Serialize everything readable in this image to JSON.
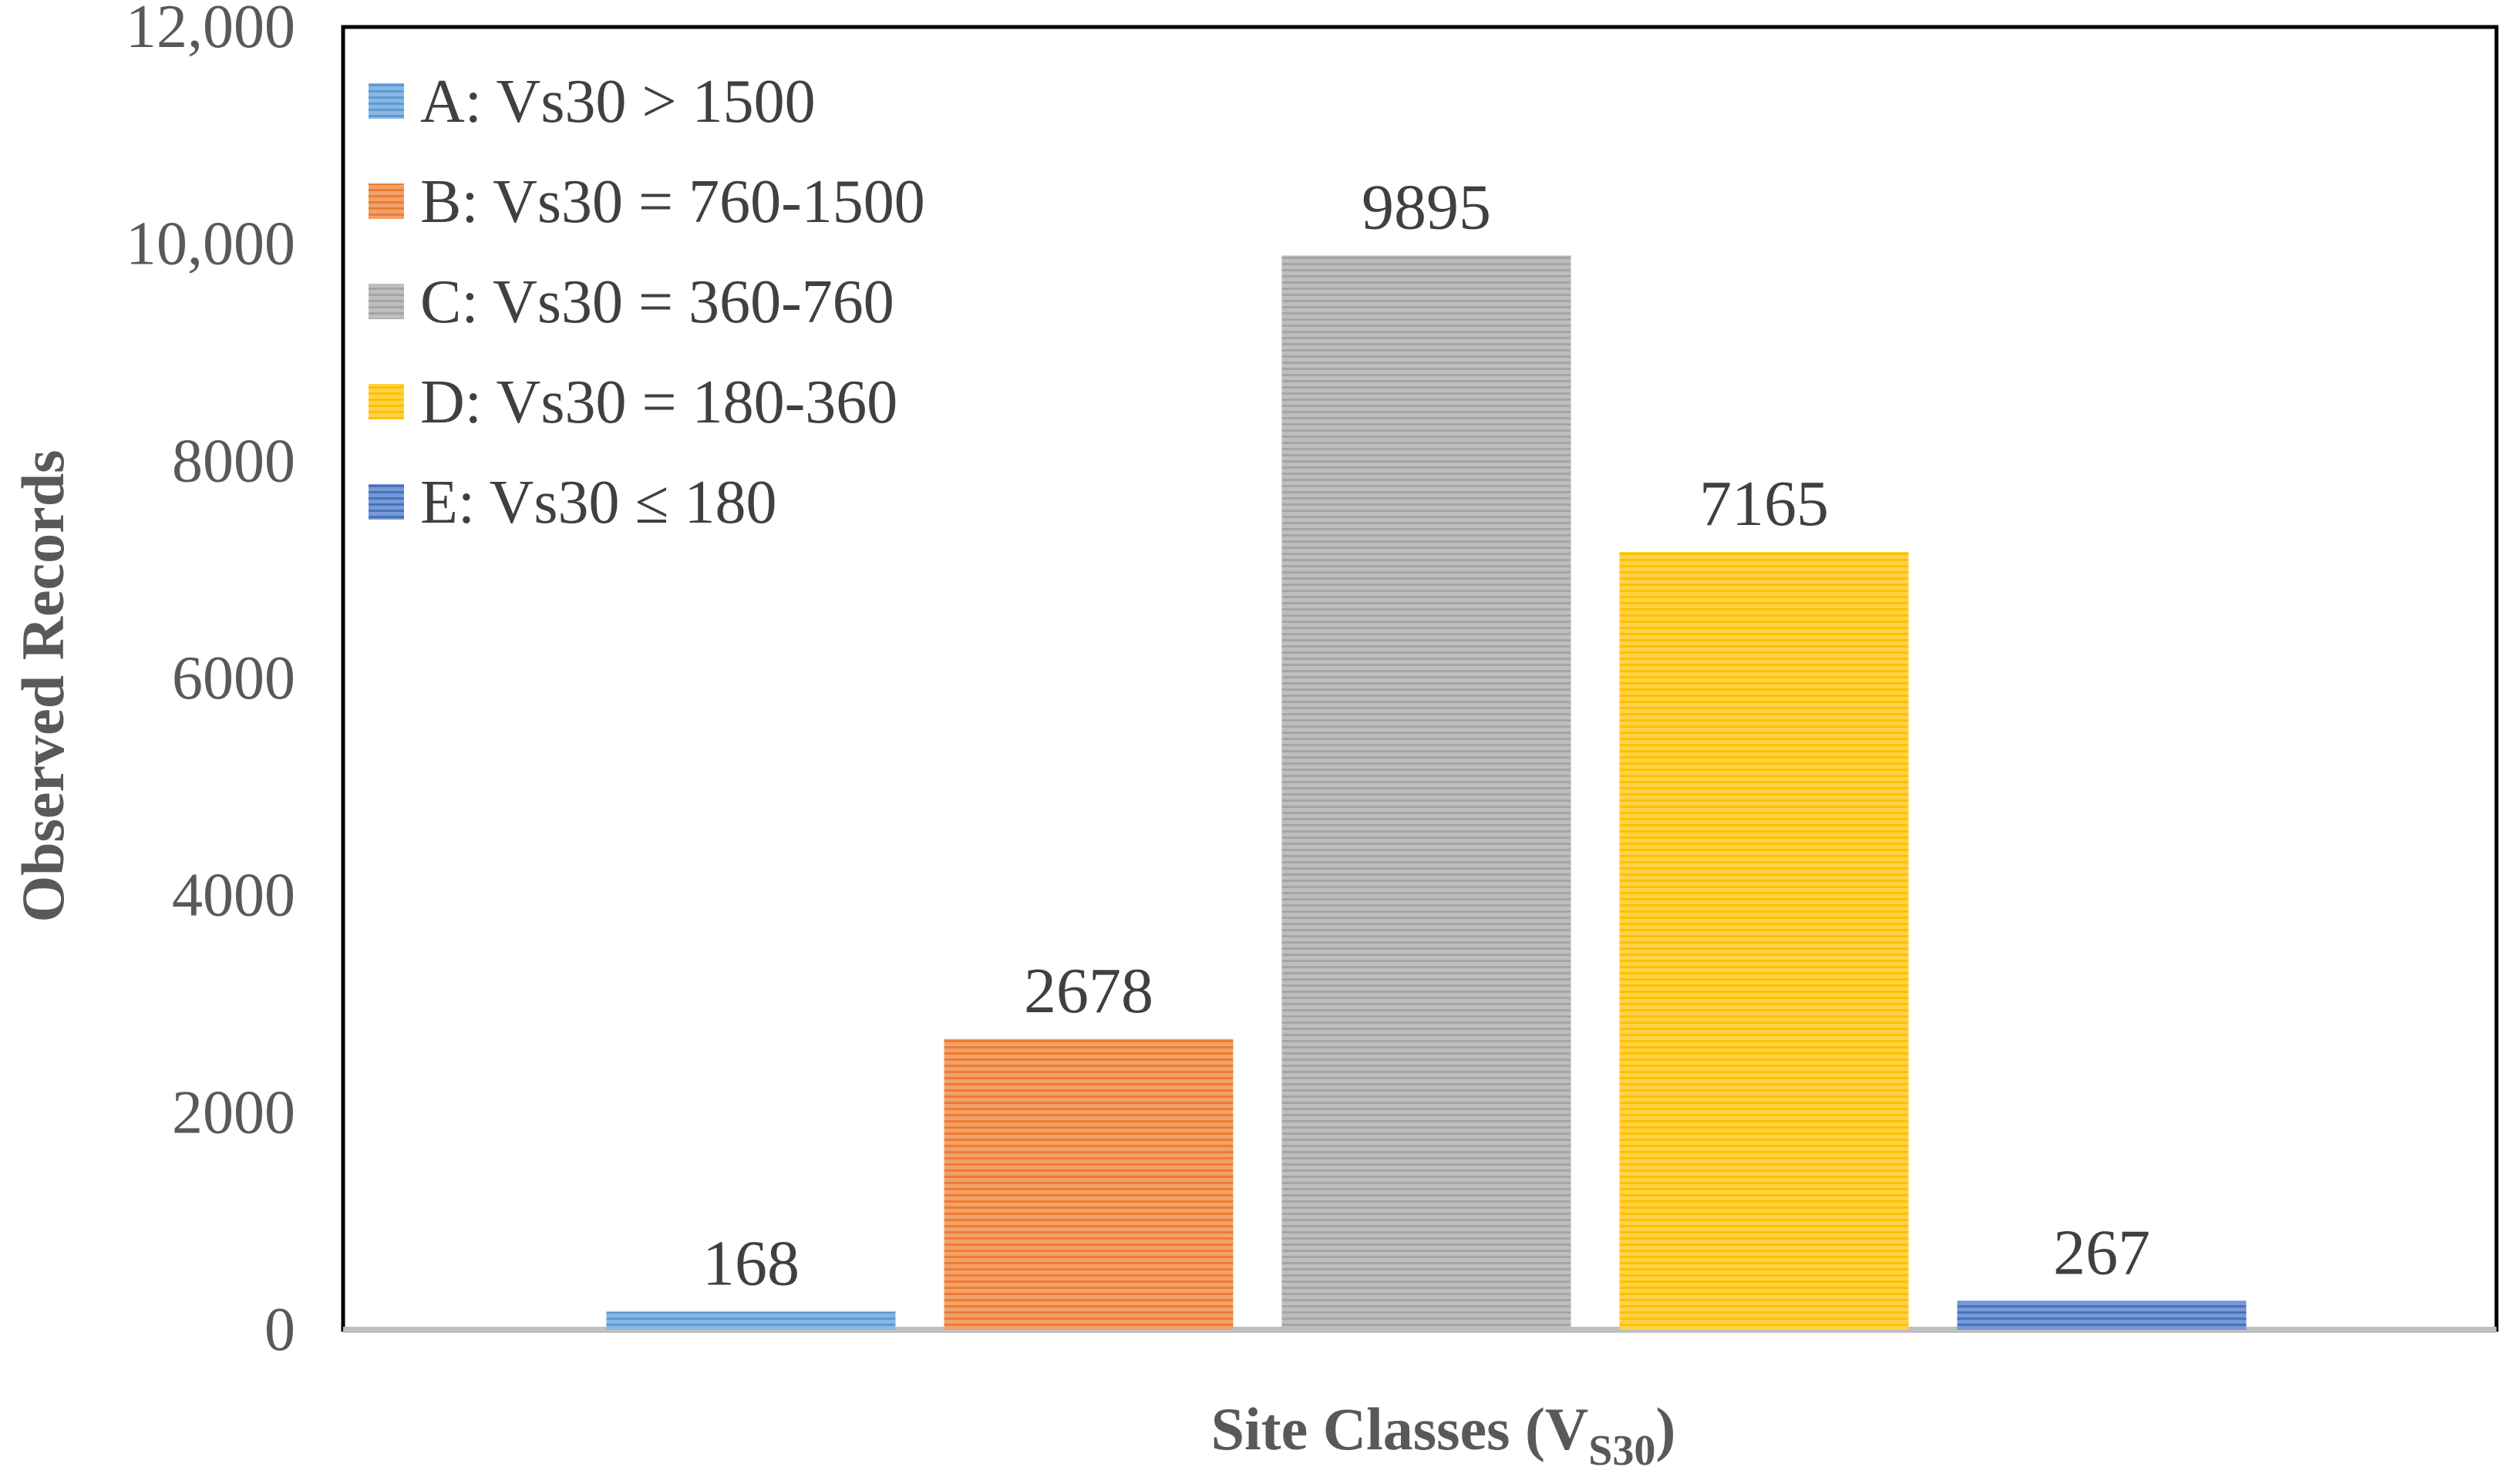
{
  "chart_data": {
    "type": "bar",
    "title": "",
    "xlabel_main": "Site Classes (V",
    "xlabel_sub": "S30",
    "xlabel_end": ")",
    "ylabel": "Observed Records",
    "ylim": [
      0,
      12000
    ],
    "yticks": [
      {
        "value": 0,
        "label": "0"
      },
      {
        "value": 2000,
        "label": "2000"
      },
      {
        "value": 4000,
        "label": "4000"
      },
      {
        "value": 6000,
        "label": "6000"
      },
      {
        "value": 8000,
        "label": "8000"
      },
      {
        "value": 10000,
        "label": "10,000"
      },
      {
        "value": 12000,
        "label": "12,000"
      }
    ],
    "grid": false,
    "legend_position": "top-left",
    "series": [
      {
        "name": "A: Vs30 > 1500",
        "value": 168,
        "label": "168",
        "color": "#5B9BD5"
      },
      {
        "name": "B: Vs30 = 760-1500",
        "value": 2678,
        "label": "2678",
        "color": "#ED7D31"
      },
      {
        "name": "C: Vs30 = 360-760",
        "value": 9895,
        "label": "9895",
        "color": "#A5A5A5"
      },
      {
        "name": "D: Vs30 = 180-360",
        "value": 7165,
        "label": "7165",
        "color": "#FFC000"
      },
      {
        "name": "E: Vs30 ≤ 180",
        "value": 267,
        "label": "267",
        "color": "#4472C4"
      }
    ]
  }
}
